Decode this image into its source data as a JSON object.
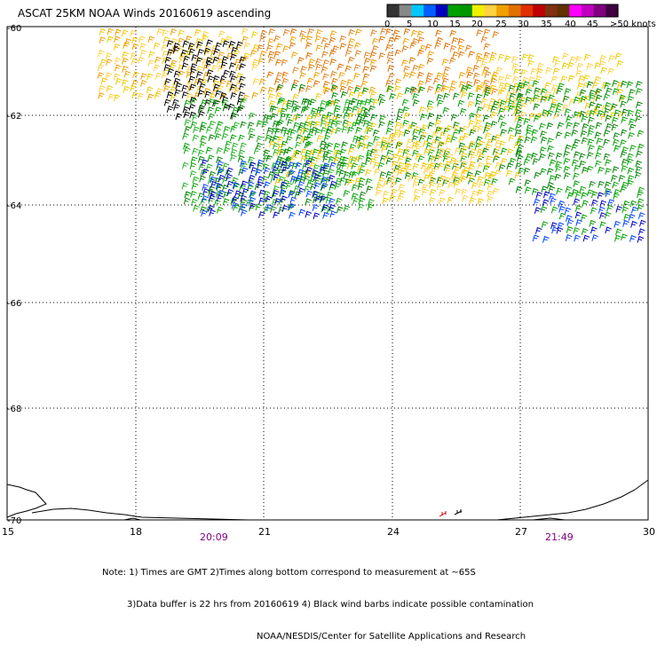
{
  "title": "ASCAT 25KM NOAA Winds 20160619 ascending",
  "legend": {
    "labels": [
      "0",
      "5",
      "10",
      "15",
      "20",
      "25",
      "30",
      "35",
      "40",
      "45",
      ">50 knots"
    ],
    "colors": [
      "#333333",
      "#888888",
      "#00c8ff",
      "#0060ff",
      "#0000c0",
      "#00a000",
      "#009600",
      "#f0f000",
      "#ffd040",
      "#f0a000",
      "#e07000",
      "#e03000",
      "#c00000",
      "#803010",
      "#603000",
      "#ff00ff",
      "#c000c0",
      "#800080",
      "#400040"
    ]
  },
  "map": {
    "lat_labels": [
      "-60",
      "-62",
      "-64",
      "-66",
      "-68",
      "-70"
    ],
    "lon_labels": [
      "15",
      "18",
      "21",
      "24",
      "27",
      "30"
    ],
    "pass_times": [
      "20:09",
      "21:49"
    ]
  },
  "notes": {
    "line1": "Note: 1) Times are GMT 2)Times along bottom correspond to measurement at ~65S",
    "line2": "3)Data buffer is 22 hrs from 20160619 4) Black wind barbs indicate possible contamination",
    "line3": "NOAA/NESDIS/Center for Satellite Applications and Research"
  }
}
